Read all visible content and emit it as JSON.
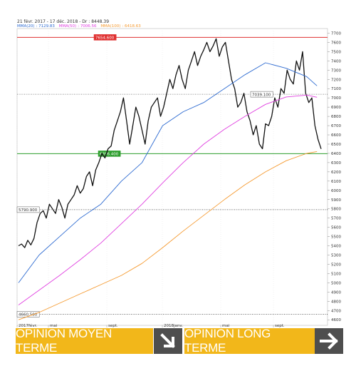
{
  "header": {
    "title": "21 févr. 2017 - 17 déc. 2018 - Dr : 8448.39"
  },
  "legend": [
    {
      "label": "MMA(20)",
      "value": "7129.83",
      "color": "#2e6bd1"
    },
    {
      "label": "MMA(50)",
      "value": "7006.56",
      "color": "#e040e0"
    },
    {
      "label": "MMA(100)",
      "value": "6418.63",
      "color": "#f59a30"
    }
  ],
  "chart_data": {
    "type": "line",
    "x_tick_labels": [
      "2017févr.",
      "mai",
      "sept.",
      "2018janv.",
      "mai",
      "sept."
    ],
    "y_ticks": [
      4600,
      4700,
      4800,
      4900,
      5000,
      5100,
      5200,
      5300,
      5400,
      5500,
      5600,
      5700,
      5800,
      5900,
      6000,
      6100,
      6200,
      6300,
      6400,
      6500,
      6600,
      6700,
      6800,
      6900,
      7000,
      7100,
      7200,
      7300,
      7400,
      7500,
      7600,
      7700
    ],
    "ylim": [
      4540,
      7750
    ],
    "levels": [
      {
        "label": "7654.600",
        "value": 7654.6,
        "color": "#e03030",
        "style": "solid"
      },
      {
        "label": "7039.100",
        "value": 7039.1,
        "color": "#666666",
        "style": "dotted"
      },
      {
        "label": "6396.400",
        "value": 6396.4,
        "color": "#2e9e2e",
        "style": "solid"
      },
      {
        "label": "5790.900",
        "value": 5790.9,
        "color": "#333333",
        "style": "dotted"
      },
      {
        "label": "4660.500",
        "value": 4660.5,
        "color": "#333333",
        "style": "dotted"
      }
    ],
    "series": [
      {
        "name": "price",
        "color": "#111111",
        "x": [
          0,
          3,
          6,
          9,
          12,
          15,
          18,
          21,
          24,
          27,
          30,
          33,
          36,
          39,
          42,
          45,
          48,
          51,
          54,
          57,
          60,
          63,
          66,
          69,
          72,
          75,
          78,
          81,
          84,
          87,
          90,
          93,
          96,
          99,
          102,
          105,
          108,
          111,
          114,
          117,
          120,
          123,
          126,
          129,
          132,
          135,
          138,
          141,
          144,
          147,
          150,
          153,
          156,
          159,
          162,
          165,
          168,
          171,
          174,
          177,
          180,
          183,
          186,
          189,
          192,
          195,
          198,
          201,
          204,
          207,
          210,
          213,
          216,
          219,
          222,
          225,
          228,
          231,
          234,
          237,
          240,
          243,
          246,
          249,
          252,
          255,
          258,
          261,
          264,
          267,
          270,
          273,
          276,
          279,
          282,
          285,
          288,
          291,
          294
        ],
        "values": [
          5400,
          5420,
          5380,
          5460,
          5410,
          5480,
          5650,
          5750,
          5780,
          5700,
          5850,
          5800,
          5750,
          5900,
          5820,
          5700,
          5850,
          5900,
          5950,
          6050,
          5970,
          6020,
          6150,
          6200,
          6050,
          6220,
          6300,
          6400,
          6350,
          6450,
          6480,
          6650,
          6750,
          6850,
          7000,
          6750,
          6500,
          6700,
          6900,
          6800,
          6650,
          6500,
          6750,
          6900,
          6950,
          7000,
          6800,
          6900,
          7050,
          7200,
          7100,
          7250,
          7350,
          7200,
          7100,
          7300,
          7400,
          7500,
          7350,
          7450,
          7520,
          7600,
          7500,
          7560,
          7640,
          7450,
          7550,
          7600,
          7400,
          7200,
          7100,
          6900,
          6950,
          7050,
          6850,
          6750,
          6600,
          6700,
          6500,
          6450,
          6720,
          6700,
          6800,
          7000,
          6900,
          7100,
          7050,
          7300,
          7200,
          7150,
          7400,
          7300,
          7500,
          7050,
          6950,
          7000,
          6700,
          6550,
          6448
        ]
      },
      {
        "name": "MMA(20)",
        "color": "#2e6bd1",
        "x": [
          0,
          20,
          40,
          60,
          80,
          100,
          120,
          140,
          160,
          180,
          200,
          220,
          240,
          260,
          280,
          290
        ],
        "values": [
          5000,
          5300,
          5500,
          5700,
          5850,
          6100,
          6300,
          6700,
          6850,
          6950,
          7100,
          7250,
          7380,
          7320,
          7230,
          7130
        ]
      },
      {
        "name": "MMA(50)",
        "color": "#e040e0",
        "x": [
          0,
          20,
          40,
          60,
          80,
          100,
          120,
          140,
          160,
          180,
          200,
          220,
          240,
          260,
          280,
          290
        ],
        "values": [
          4760,
          4920,
          5080,
          5250,
          5430,
          5640,
          5850,
          6080,
          6300,
          6500,
          6660,
          6800,
          6930,
          7010,
          7030,
          7007
        ]
      },
      {
        "name": "MMA(100)",
        "color": "#f59a30",
        "x": [
          0,
          20,
          40,
          60,
          80,
          100,
          120,
          140,
          160,
          180,
          200,
          220,
          240,
          260,
          280,
          290
        ],
        "values": [
          4600,
          4680,
          4780,
          4880,
          4980,
          5080,
          5210,
          5380,
          5560,
          5730,
          5900,
          6060,
          6200,
          6320,
          6400,
          6420
        ]
      }
    ],
    "x_range": [
      0,
      294
    ]
  },
  "opinions": {
    "medium_label": "OPINION MOYEN TERME",
    "long_label": "OPINION LONG TERME",
    "medium_icon": "arrow-down-right-icon",
    "long_icon": "arrow-right-icon"
  }
}
